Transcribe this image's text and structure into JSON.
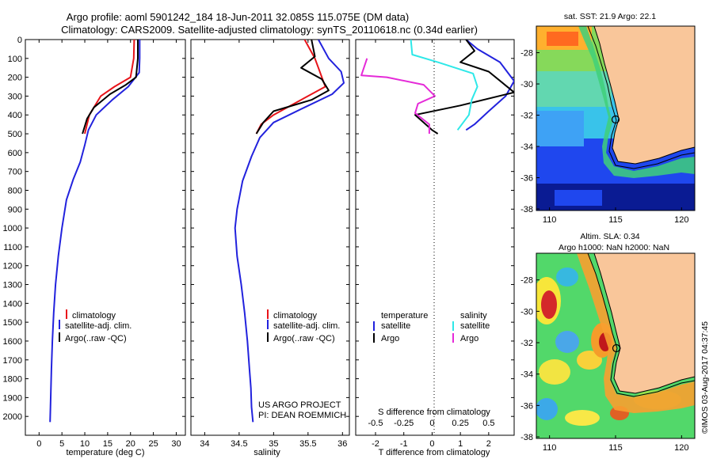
{
  "title": {
    "line1": "Argo profile: aoml 5901242_184 18-Jun-2011 32.085S 115.075E (DM data)",
    "line2": "Climatology: CARS2009. Satellite-adjusted climatology: synTS_20110618.nc (0.34d earlier)"
  },
  "map_sst": {
    "title": "sat. SST: 21.9 Argo: 22.1"
  },
  "map_sla": {
    "title_line1": "Altim. SLA: 0.34",
    "title_line2": "Argo h1000: NaN h2000: NaN"
  },
  "credit": "©IMOS 03-Aug-2017 04:37:45",
  "project": {
    "line1": "US ARGO PROJECT",
    "line2": "PI: DEAN ROEMMICH"
  },
  "legend_profiles": {
    "items": [
      "climatology",
      "satellite-adj. clim.",
      "Argo(..raw -QC)"
    ]
  },
  "legend_diff": {
    "temperature_header": "temperature",
    "salinity_header": "salinity",
    "items": [
      "satellite",
      "Argo",
      "satellite",
      "Argo"
    ]
  },
  "colors": {
    "climatology": "#e8141a",
    "satellite": "#2222dd",
    "argo": "#000000",
    "sal_satellite": "#2ee8e8",
    "sal_argo": "#e52ad8",
    "land": "#f9c69a"
  },
  "chart_data": [
    {
      "type": "line",
      "xlabel": "temperature (deg C)",
      "ylabel": "",
      "xlim": [
        -3,
        32
      ],
      "ylim": [
        2100,
        0
      ],
      "xticks": [
        0,
        5,
        10,
        15,
        20,
        25,
        30
      ],
      "yticks": [
        0,
        100,
        200,
        300,
        400,
        500,
        600,
        700,
        800,
        900,
        1000,
        1100,
        1200,
        1300,
        1400,
        1500,
        1600,
        1700,
        1800,
        1900,
        2000
      ],
      "series": [
        {
          "name": "climatology",
          "color_key": "climatology",
          "x": [
            20.8,
            20.7,
            20.0,
            16.5,
            13.5,
            11.0,
            10.0
          ],
          "y": [
            0,
            100,
            200,
            250,
            300,
            400,
            500
          ]
        },
        {
          "name": "satellite-adj. clim.",
          "color_key": "satellite",
          "x": [
            22.0,
            22.0,
            21.9,
            19.5,
            16.0,
            12.5,
            10.8,
            10.0,
            9.0,
            7.5,
            6.0,
            5.0,
            4.2,
            3.6,
            3.2,
            2.9,
            2.7,
            2.6,
            2.5,
            2.4
          ],
          "y": [
            0,
            100,
            175,
            250,
            320,
            400,
            480,
            560,
            650,
            740,
            850,
            1000,
            1150,
            1300,
            1450,
            1600,
            1750,
            1850,
            1950,
            2030
          ]
        },
        {
          "name": "Argo(..raw -QC)",
          "color_key": "argo",
          "x": [
            21.6,
            21.6,
            21.2,
            19.0,
            15.5,
            12.0,
            10.5,
            9.5
          ],
          "y": [
            0,
            100,
            200,
            240,
            290,
            360,
            420,
            500
          ]
        }
      ]
    },
    {
      "type": "line",
      "xlabel": "salinity",
      "ylabel": "",
      "xlim": [
        33.8,
        36.1
      ],
      "ylim": [
        2100,
        0
      ],
      "xticks": [
        34,
        34.5,
        35,
        35.5,
        36
      ],
      "series": [
        {
          "name": "climatology",
          "color_key": "climatology",
          "x": [
            35.45,
            35.6,
            35.65,
            35.75,
            35.5,
            35.0,
            34.82,
            34.75
          ],
          "y": [
            0,
            100,
            150,
            250,
            300,
            400,
            450,
            500
          ]
        },
        {
          "name": "satellite-adj. clim.",
          "color_key": "satellite",
          "x": [
            35.65,
            35.8,
            35.98,
            36.02,
            35.85,
            35.45,
            35.0,
            34.8,
            34.68,
            34.55,
            34.47,
            34.44,
            34.47,
            34.53,
            34.58,
            34.62,
            34.65,
            34.67,
            34.68,
            34.7
          ],
          "y": [
            0,
            100,
            170,
            230,
            290,
            360,
            440,
            520,
            620,
            750,
            900,
            1000,
            1150,
            1300,
            1450,
            1600,
            1750,
            1850,
            1950,
            2030
          ]
        },
        {
          "name": "Argo(..raw -QC)",
          "color_key": "argo",
          "x": [
            35.55,
            35.6,
            35.4,
            35.7,
            35.8,
            35.55,
            35.0,
            34.85,
            34.75
          ],
          "y": [
            0,
            90,
            150,
            210,
            270,
            320,
            380,
            440,
            500
          ]
        }
      ]
    },
    {
      "type": "line",
      "xlabel": "T difference from climatology",
      "top_label": "S difference from climatology",
      "xlim": [
        -2.7,
        2.9
      ],
      "ylim": [
        2100,
        0
      ],
      "xticks": [
        -2,
        -1,
        0,
        1,
        2
      ],
      "top_xticks": [
        -0.5,
        -0.25,
        0,
        0.25,
        0.5
      ],
      "series": [
        {
          "name": "temperature satellite",
          "color_key": "satellite",
          "x": [
            1.2,
            1.6,
            2.4,
            2.9,
            2.6,
            2.0,
            1.5,
            1.2
          ],
          "y": [
            0,
            50,
            120,
            220,
            300,
            380,
            450,
            480
          ]
        },
        {
          "name": "temperature Argo",
          "color_key": "argo",
          "x": [
            1.2,
            1.5,
            1.0,
            2.0,
            2.9,
            1.0,
            -0.6,
            0.0,
            0.2
          ],
          "y": [
            0,
            60,
            120,
            170,
            280,
            350,
            400,
            480,
            500
          ]
        },
        {
          "name": "salinity satellite",
          "color_key": "sal_satellite",
          "x": [
            -0.75,
            -0.7,
            0.2,
            1.45,
            1.6,
            1.4,
            1.3,
            0.9
          ],
          "y": [
            0,
            80,
            120,
            180,
            250,
            320,
            400,
            480
          ]
        },
        {
          "name": "salinity Argo",
          "color_key": "sal_argo",
          "x": [
            -2.3,
            -2.5,
            -1.6,
            -0.3,
            0.1,
            -0.5,
            -0.6,
            -0.1,
            -0.1
          ],
          "y": [
            100,
            190,
            200,
            240,
            300,
            340,
            390,
            450,
            500
          ]
        }
      ]
    }
  ],
  "maps": [
    {
      "key": "sst",
      "lon_ticks": [
        110,
        115,
        120
      ],
      "lat_ticks": [
        -28,
        -30,
        -32,
        -34,
        -36,
        -38
      ],
      "lon_range": [
        109,
        121
      ],
      "lat_range": [
        -38.1,
        -26.3
      ],
      "argo_lon": 115.075,
      "argo_lat": -32.085
    },
    {
      "key": "sla",
      "lon_ticks": [
        110,
        115,
        120
      ],
      "lat_ticks": [
        -28,
        -30,
        -32,
        -34,
        -36,
        -38
      ],
      "lon_range": [
        109,
        121
      ],
      "lat_range": [
        -38.1,
        -26.3
      ],
      "argo_lon": 115.075,
      "argo_lat": -32.085
    }
  ]
}
